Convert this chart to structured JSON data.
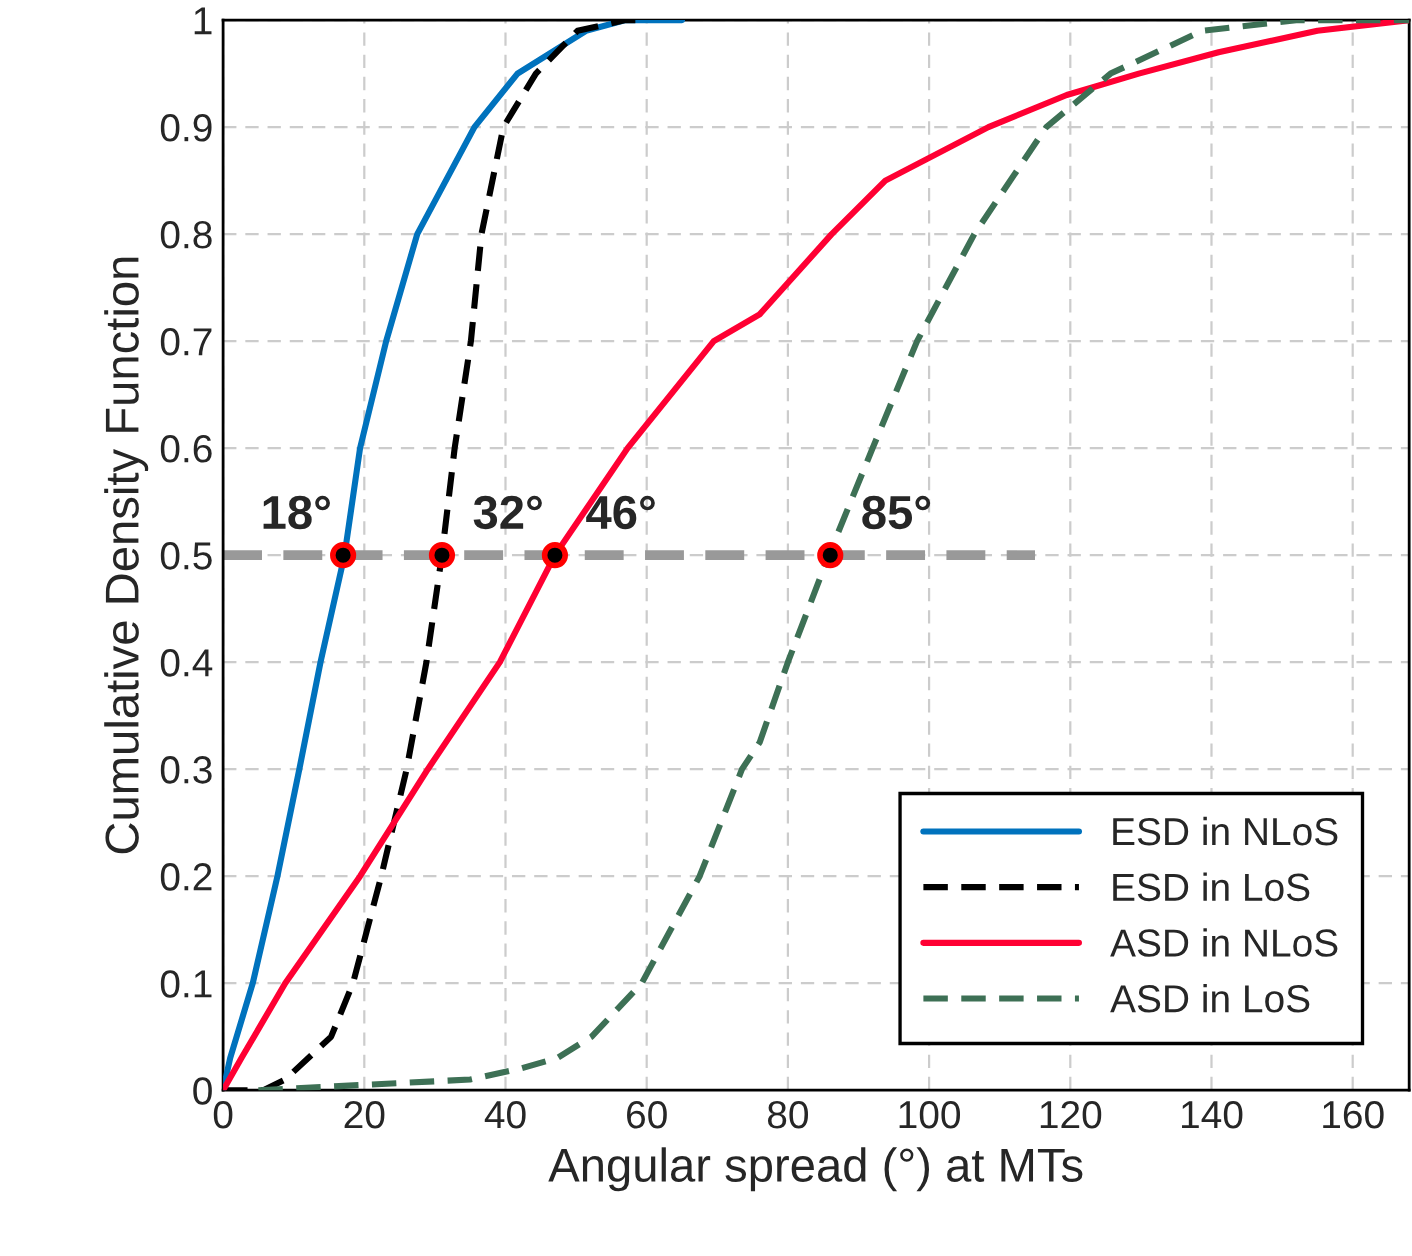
{
  "chart_data": {
    "type": "line",
    "xlabel": "Angular spread (°) at MTs",
    "ylabel": "Cumulative Density Function",
    "xlim": [
      0,
      168
    ],
    "ylim": [
      0,
      1
    ],
    "xticks": [
      0,
      20,
      40,
      60,
      80,
      100,
      120,
      140,
      160
    ],
    "yticks": [
      0,
      0.1,
      0.2,
      0.3,
      0.4,
      0.5,
      0.6,
      0.7,
      0.8,
      0.9,
      1
    ],
    "grid": true,
    "legend": "bottom right",
    "series": [
      {
        "type": "line",
        "color": "#999999",
        "line_style": "dashed",
        "x": [
          0,
          115
        ],
        "values": [
          0.5,
          0.5
        ]
      },
      {
        "name": "ESD in NLoS",
        "color": "#0072bd",
        "line_style": "solid",
        "x": [
          0,
          1,
          4.2,
          7.7,
          10.8,
          13.8,
          17.2,
          19.4,
          23.1,
          27.5,
          35.6,
          41.7,
          51.4,
          57,
          65
        ],
        "values": [
          0,
          0.03,
          0.1,
          0.2,
          0.3,
          0.4,
          0.5,
          0.6,
          0.7,
          0.8,
          0.9,
          0.95,
          0.99,
          1,
          1
        ]
      },
      {
        "name": "ESD in LoS",
        "color": "#000000",
        "line_style": "dashed",
        "x": [
          0,
          5.7,
          8.8,
          15.3,
          18.4,
          22.4,
          26,
          28.8,
          31,
          32.8,
          35.1,
          36.6,
          39.7,
          44.3,
          50.2,
          57,
          60
        ],
        "values": [
          0,
          0,
          0.01,
          0.05,
          0.1,
          0.2,
          0.3,
          0.4,
          0.5,
          0.6,
          0.7,
          0.8,
          0.9,
          0.95,
          0.99,
          1,
          1
        ]
      },
      {
        "name": "ASD in NLoS",
        "color": "#ff0033",
        "line_style": "solid",
        "x": [
          0,
          2.6,
          8.8,
          19.4,
          29,
          39.2,
          47,
          57.3,
          69.5,
          76,
          86.2,
          93.8,
          108.4,
          119.5,
          129.7,
          141,
          155,
          168
        ],
        "values": [
          0,
          0.03,
          0.1,
          0.2,
          0.3,
          0.4,
          0.5,
          0.6,
          0.7,
          0.725,
          0.8,
          0.85,
          0.9,
          0.93,
          0.95,
          0.97,
          0.99,
          1
        ]
      },
      {
        "name": "ASD in LoS",
        "color": "#3d7055",
        "line_style": "dashed",
        "x": [
          5,
          20,
          35,
          42,
          47.3,
          52.2,
          59.3,
          67.5,
          73.5,
          76,
          80,
          85.8,
          92,
          98.3,
          106.4,
          116.6,
          125.7,
          138.7,
          152,
          168
        ],
        "values": [
          0,
          0.005,
          0.01,
          0.02,
          0.03,
          0.05,
          0.1,
          0.2,
          0.3,
          0.325,
          0.4,
          0.5,
          0.6,
          0.7,
          0.8,
          0.9,
          0.95,
          0.99,
          1,
          1
        ]
      },
      {
        "type": "scatter",
        "marker": "circle",
        "color": "#000000",
        "x": [
          17,
          31,
          47,
          86
        ],
        "values": [
          0.5,
          0.5,
          0.5,
          0.5
        ]
      }
    ],
    "annotations": [
      {
        "text": "18°",
        "x": 17,
        "y": 0.5
      },
      {
        "text": "32°",
        "x": 31,
        "y": 0.5
      },
      {
        "text": "46°",
        "x": 47,
        "y": 0.5
      },
      {
        "text": "85°",
        "x": 86,
        "y": 0.5
      }
    ]
  }
}
